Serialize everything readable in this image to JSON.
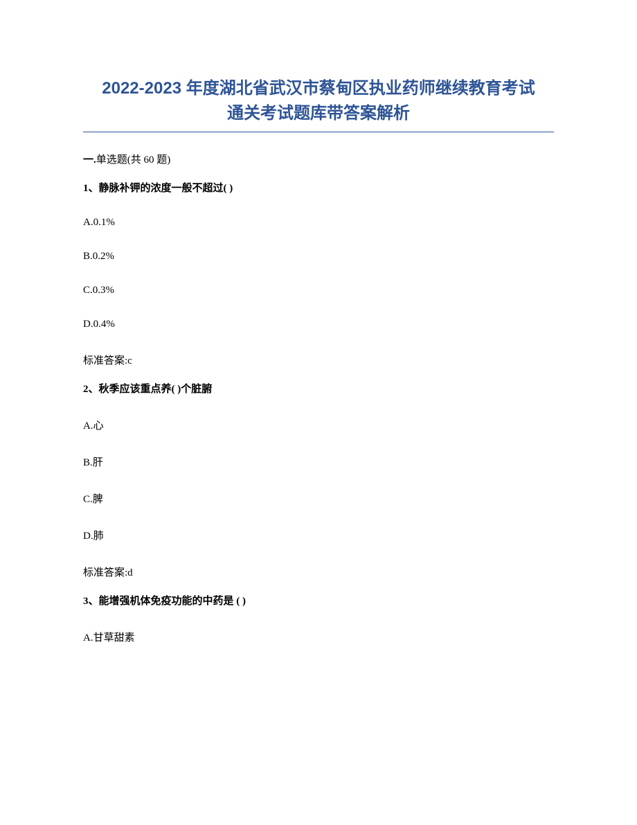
{
  "title_line1": "2022-2023 年度湖北省武汉市蔡甸区执业药师继续教育考试",
  "title_line2": "通关考试题库带答案解析",
  "section": {
    "prefix": "一.",
    "type": "单选题",
    "count_text": "(共 60 题)"
  },
  "questions": [
    {
      "number": "1、",
      "text": "静脉补钾的浓度一般不超过( )",
      "options": [
        "A.0.1%",
        "B.0.2%",
        "C.0.3%",
        "D.0.4%"
      ],
      "answer_label": "标准答案:",
      "answer_value": "c"
    },
    {
      "number": "2、",
      "text": "秋季应该重点养( )个脏腑",
      "options": [
        "A.心",
        "B.肝",
        "C.脾",
        "D.肺"
      ],
      "answer_label": "标准答案:",
      "answer_value": "d"
    },
    {
      "number": "3、",
      "text": "能增强机体免疫功能的中药是 ( )",
      "options": [
        "A.甘草甜素"
      ],
      "answer_label": "",
      "answer_value": ""
    }
  ],
  "colors": {
    "title": "#2e5496",
    "underline": "#2e5496",
    "text": "#000000",
    "background": "#ffffff"
  },
  "fonts": {
    "title_size": 24,
    "body_size": 15
  }
}
